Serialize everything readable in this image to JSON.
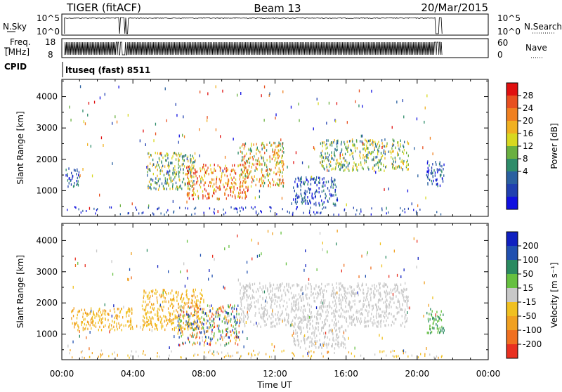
{
  "header": {
    "radar": "TIGER (fitACF)",
    "beam": "Beam 13",
    "date": "20/Mar/2015"
  },
  "top_panels": {
    "nsky_label": "N.Sky",
    "nsky_ticks": [
      "10^5",
      "10^0"
    ],
    "nsearch_label": "N.Search",
    "freq_label": "Freq.",
    "freq_unit": "[MHz]",
    "freq_ticks": [
      "18",
      "8"
    ],
    "nave_label": "Nave",
    "nave_ticks": [
      "60",
      "0"
    ],
    "cpid_label": "CPID",
    "cpid_value": "ltuseq (fast) 8511"
  },
  "chart_data": [
    {
      "type": "heatmap",
      "panel": "power",
      "xlabel": "Time UT",
      "ylabel": "Slant Range [km]",
      "xticks": [
        "00:00",
        "04:00",
        "08:00",
        "12:00",
        "16:00",
        "20:00",
        "00:00"
      ],
      "xlim_hours": [
        0,
        24
      ],
      "yticks": [
        1000,
        2000,
        3000,
        4000
      ],
      "ylim_km": [
        180,
        4550
      ],
      "colorbar": {
        "label": "Power [dB]",
        "ticks": [
          "28",
          "24",
          "20",
          "16",
          "12",
          "8",
          "4"
        ],
        "colors_bottom_to_top": [
          "#1010e0",
          "#2040b0",
          "#2a60a0",
          "#2e8c6a",
          "#6ab040",
          "#d8d820",
          "#f0b020",
          "#f08020",
          "#e85020",
          "#e01010"
        ]
      },
      "scatter_regions": [
        {
          "t": [
            0.2,
            1.0
          ],
          "r": [
            1100,
            1700
          ],
          "value": "low"
        },
        {
          "t": [
            4.8,
            7.5
          ],
          "r": [
            1000,
            2200
          ],
          "value": "mid"
        },
        {
          "t": [
            7.0,
            10.5
          ],
          "r": [
            700,
            1800
          ],
          "value": "high"
        },
        {
          "t": [
            10.0,
            12.5
          ],
          "r": [
            1100,
            2500
          ],
          "value": "mid-high"
        },
        {
          "t": [
            13.0,
            15.5
          ],
          "r": [
            500,
            1400
          ],
          "value": "low"
        },
        {
          "t": [
            14.5,
            19.5
          ],
          "r": [
            1600,
            2600
          ],
          "value": "mid"
        },
        {
          "t": [
            20.5,
            21.5
          ],
          "r": [
            1100,
            1900
          ],
          "value": "low"
        }
      ]
    },
    {
      "type": "heatmap",
      "panel": "velocity",
      "xlabel": "Time UT",
      "ylabel": "Slant Range [km]",
      "xticks": [
        "00:00",
        "04:00",
        "08:00",
        "12:00",
        "16:00",
        "20:00",
        "00:00"
      ],
      "xlim_hours": [
        0,
        24
      ],
      "yticks": [
        1000,
        2000,
        3000,
        4000
      ],
      "ylim_km": [
        180,
        4550
      ],
      "colorbar": {
        "label": "Velocity [m s⁻¹]",
        "ticks": [
          "200",
          "100",
          "50",
          "15",
          "-15",
          "-50",
          "-100",
          "-200"
        ],
        "colors_top_to_bottom": [
          "#1020c0",
          "#2050b0",
          "#2a8a60",
          "#66c040",
          "#c8c8c8",
          "#f0c020",
          "#f0a020",
          "#f07020",
          "#e83020"
        ]
      },
      "scatter_regions": [
        {
          "t": [
            0.5,
            4.0
          ],
          "r": [
            1100,
            1800
          ],
          "value": "-50"
        },
        {
          "t": [
            4.5,
            8.0
          ],
          "r": [
            1100,
            2400
          ],
          "value": "-50"
        },
        {
          "t": [
            6.5,
            10.0
          ],
          "r": [
            600,
            1900
          ],
          "value": "mixed"
        },
        {
          "t": [
            10.0,
            19.5
          ],
          "r": [
            1200,
            2600
          ],
          "value": "-15"
        },
        {
          "t": [
            13.0,
            16.0
          ],
          "r": [
            500,
            1200
          ],
          "value": "-15"
        },
        {
          "t": [
            20.5,
            21.5
          ],
          "r": [
            1000,
            1800
          ],
          "value": "50"
        }
      ]
    }
  ]
}
